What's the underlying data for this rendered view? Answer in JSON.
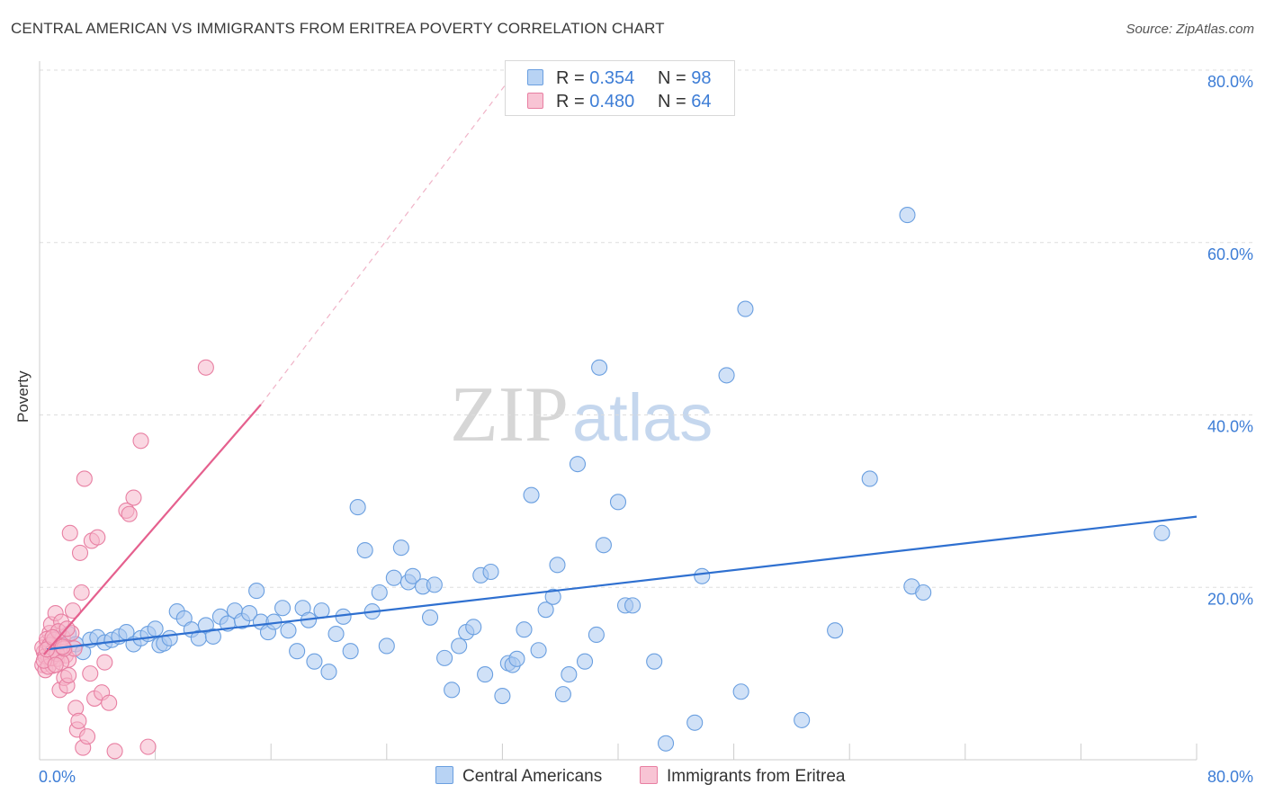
{
  "title": "CENTRAL AMERICAN VS IMMIGRANTS FROM ERITREA POVERTY CORRELATION CHART",
  "source": "Source: ZipAtlas.com",
  "watermark": {
    "part1": "ZIP",
    "part2": "atlas"
  },
  "legend_top": [
    {
      "r_label": "R =",
      "r_value": "0.354",
      "n_label": "N =",
      "n_value": "98"
    },
    {
      "r_label": "R =",
      "r_value": "0.480",
      "n_label": "N =",
      "n_value": "64"
    }
  ],
  "legend_bottom": [
    "Central Americans",
    "Immigrants from Eritrea"
  ],
  "colors": {
    "blue_fill": "#a9c8f0",
    "blue_stroke": "#6a9fe0",
    "blue_line": "#2f70d0",
    "pink_fill": "#f6b6cb",
    "pink_stroke": "#e87fa2",
    "pink_line": "#e5608e",
    "tick_text": "#3d7dd6",
    "grid": "#dddddd",
    "axis": "#cccccc"
  },
  "chart_data": {
    "type": "scatter",
    "title": "CENTRAL AMERICAN VS IMMIGRANTS FROM ERITREA POVERTY CORRELATION CHART",
    "xlabel": "",
    "ylabel": "Poverty",
    "xlim": [
      0,
      80
    ],
    "ylim": [
      0,
      80
    ],
    "x_tick_labels": [
      "0.0%",
      "80.0%"
    ],
    "y_tick_labels": [
      "20.0%",
      "40.0%",
      "60.0%",
      "80.0%"
    ],
    "y_ticks": [
      20,
      40,
      60,
      80
    ],
    "x_minor_ticks": [
      8,
      16,
      24,
      32,
      40,
      48,
      56,
      64,
      72,
      80
    ],
    "grid": "horizontal dashed",
    "legend_position": "top-center",
    "series": [
      {
        "name": "Central Americans",
        "r": 0.354,
        "n": 98,
        "trend": {
          "x": [
            0.5,
            80
          ],
          "y": [
            12.8,
            28.2
          ],
          "style": "solid"
        },
        "points": [
          [
            0.8,
            13.2
          ],
          [
            1.2,
            14.0
          ],
          [
            1.5,
            12.9
          ],
          [
            2.0,
            14.6
          ],
          [
            2.5,
            13.4
          ],
          [
            3.0,
            12.5
          ],
          [
            3.5,
            13.9
          ],
          [
            4.0,
            14.2
          ],
          [
            4.5,
            13.6
          ],
          [
            5.0,
            13.9
          ],
          [
            5.5,
            14.3
          ],
          [
            6.0,
            14.8
          ],
          [
            6.5,
            13.4
          ],
          [
            7.0,
            14.1
          ],
          [
            7.5,
            14.6
          ],
          [
            8.0,
            15.2
          ],
          [
            8.3,
            13.3
          ],
          [
            8.6,
            13.5
          ],
          [
            9.0,
            14.1
          ],
          [
            9.5,
            17.2
          ],
          [
            10.0,
            16.4
          ],
          [
            10.5,
            15.1
          ],
          [
            11.0,
            14.1
          ],
          [
            11.5,
            15.6
          ],
          [
            12.0,
            14.3
          ],
          [
            12.5,
            16.6
          ],
          [
            13.0,
            15.8
          ],
          [
            13.5,
            17.3
          ],
          [
            14.0,
            16.1
          ],
          [
            14.5,
            17.0
          ],
          [
            15.0,
            19.6
          ],
          [
            15.3,
            16.0
          ],
          [
            15.8,
            14.8
          ],
          [
            16.2,
            16.0
          ],
          [
            16.8,
            17.6
          ],
          [
            17.2,
            15.0
          ],
          [
            17.8,
            12.6
          ],
          [
            18.2,
            17.6
          ],
          [
            18.6,
            16.2
          ],
          [
            19.0,
            11.4
          ],
          [
            19.5,
            17.3
          ],
          [
            20.0,
            10.2
          ],
          [
            20.5,
            14.6
          ],
          [
            21.0,
            16.6
          ],
          [
            21.5,
            12.6
          ],
          [
            22.0,
            29.3
          ],
          [
            22.5,
            24.3
          ],
          [
            23.0,
            17.2
          ],
          [
            23.5,
            19.4
          ],
          [
            24.0,
            13.2
          ],
          [
            24.5,
            21.1
          ],
          [
            25.0,
            24.6
          ],
          [
            25.5,
            20.6
          ],
          [
            25.8,
            21.3
          ],
          [
            26.5,
            20.1
          ],
          [
            27.0,
            16.5
          ],
          [
            27.3,
            20.3
          ],
          [
            28.0,
            11.8
          ],
          [
            28.5,
            8.1
          ],
          [
            29.0,
            13.2
          ],
          [
            29.5,
            14.8
          ],
          [
            30.0,
            15.4
          ],
          [
            30.5,
            21.4
          ],
          [
            30.8,
            9.9
          ],
          [
            31.2,
            21.8
          ],
          [
            32.0,
            7.4
          ],
          [
            32.4,
            11.2
          ],
          [
            32.7,
            11.0
          ],
          [
            33.0,
            11.7
          ],
          [
            33.5,
            15.1
          ],
          [
            34.0,
            30.7
          ],
          [
            34.5,
            12.7
          ],
          [
            35.0,
            17.4
          ],
          [
            35.5,
            18.9
          ],
          [
            35.8,
            22.6
          ],
          [
            36.2,
            7.6
          ],
          [
            36.6,
            9.9
          ],
          [
            37.2,
            34.3
          ],
          [
            37.7,
            11.4
          ],
          [
            38.5,
            14.5
          ],
          [
            38.7,
            45.5
          ],
          [
            39.0,
            24.9
          ],
          [
            40.0,
            29.9
          ],
          [
            40.5,
            17.9
          ],
          [
            41.0,
            17.9
          ],
          [
            42.5,
            11.4
          ],
          [
            43.3,
            1.9
          ],
          [
            45.3,
            4.3
          ],
          [
            45.8,
            21.3
          ],
          [
            47.5,
            44.6
          ],
          [
            48.5,
            7.9
          ],
          [
            48.8,
            52.3
          ],
          [
            52.7,
            4.6
          ],
          [
            55.0,
            15.0
          ],
          [
            57.4,
            32.6
          ],
          [
            60.0,
            63.2
          ],
          [
            60.3,
            20.1
          ],
          [
            61.1,
            19.4
          ],
          [
            77.6,
            26.3
          ]
        ]
      },
      {
        "name": "Immigrants from Eritrea",
        "r": 0.48,
        "n": 64,
        "trend": {
          "x": [
            0.3,
            15.3
          ],
          "y": [
            12.2,
            41.2
          ],
          "style": "solid",
          "extension": {
            "x": [
              15.3,
              32.3
            ],
            "y": [
              41.2,
              78.5
            ],
            "style": "dashed"
          }
        },
        "points": [
          [
            0.2,
            11.0
          ],
          [
            0.3,
            12.5
          ],
          [
            0.4,
            10.4
          ],
          [
            0.5,
            13.6
          ],
          [
            0.6,
            11.9
          ],
          [
            0.7,
            14.7
          ],
          [
            0.8,
            15.7
          ],
          [
            0.9,
            10.9
          ],
          [
            1.0,
            12.8
          ],
          [
            1.1,
            17.0
          ],
          [
            1.2,
            11.7
          ],
          [
            1.3,
            13.4
          ],
          [
            1.4,
            8.1
          ],
          [
            1.5,
            16.0
          ],
          [
            1.6,
            14.2
          ],
          [
            1.7,
            9.5
          ],
          [
            1.8,
            12.1
          ],
          [
            1.9,
            8.6
          ],
          [
            2.0,
            11.6
          ],
          [
            2.1,
            26.3
          ],
          [
            2.2,
            14.7
          ],
          [
            2.3,
            17.3
          ],
          [
            2.4,
            12.9
          ],
          [
            2.5,
            6.0
          ],
          [
            2.6,
            3.5
          ],
          [
            2.7,
            4.5
          ],
          [
            2.8,
            24.0
          ],
          [
            2.9,
            19.4
          ],
          [
            3.0,
            1.4
          ],
          [
            3.1,
            32.6
          ],
          [
            3.3,
            2.7
          ],
          [
            3.5,
            10.0
          ],
          [
            3.6,
            25.4
          ],
          [
            3.8,
            7.1
          ],
          [
            4.0,
            25.8
          ],
          [
            4.3,
            7.8
          ],
          [
            4.5,
            11.3
          ],
          [
            4.8,
            6.6
          ],
          [
            5.2,
            1.0
          ],
          [
            6.0,
            28.9
          ],
          [
            6.2,
            28.5
          ],
          [
            6.5,
            30.4
          ],
          [
            7.0,
            37.0
          ],
          [
            7.5,
            1.5
          ],
          [
            11.5,
            45.5
          ],
          [
            0.2,
            13.0
          ],
          [
            0.4,
            12.0
          ],
          [
            0.5,
            14.0
          ],
          [
            0.6,
            10.8
          ],
          [
            0.7,
            13.3
          ],
          [
            0.8,
            11.8
          ],
          [
            0.9,
            12.5
          ],
          [
            1.0,
            13.9
          ],
          [
            1.2,
            12.3
          ],
          [
            1.3,
            14.9
          ],
          [
            1.5,
            11.3
          ],
          [
            1.7,
            12.9
          ],
          [
            1.9,
            15.2
          ],
          [
            0.3,
            11.5
          ],
          [
            0.5,
            12.8
          ],
          [
            0.9,
            14.2
          ],
          [
            1.1,
            11.0
          ],
          [
            1.6,
            13.1
          ],
          [
            2.0,
            9.8
          ]
        ]
      }
    ]
  }
}
